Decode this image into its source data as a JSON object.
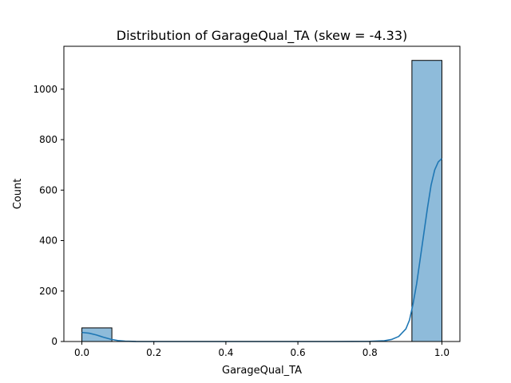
{
  "chart_data": {
    "type": "bar",
    "title": "Distribution of GarageQual_TA (skew = -4.33)",
    "xlabel": "GarageQual_TA",
    "ylabel": "Count",
    "xlim": [
      -0.05,
      1.05
    ],
    "ylim": [
      0,
      1170
    ],
    "x_ticks": [
      0.0,
      0.2,
      0.4,
      0.6,
      0.8,
      1.0
    ],
    "x_tick_labels": [
      "0.0",
      "0.2",
      "0.4",
      "0.6",
      "0.8",
      "1.0"
    ],
    "y_ticks": [
      0,
      200,
      400,
      600,
      800,
      1000
    ],
    "y_tick_labels": [
      "0",
      "200",
      "400",
      "600",
      "800",
      "1000"
    ],
    "bins": [
      {
        "x0": 0.0,
        "x1": 0.0833,
        "count": 54
      },
      {
        "x0": 0.9167,
        "x1": 1.0,
        "count": 1114
      }
    ],
    "kde": {
      "x": [
        0.0,
        0.02,
        0.04,
        0.06,
        0.08,
        0.1,
        0.12,
        0.15,
        0.2,
        0.3,
        0.4,
        0.5,
        0.6,
        0.7,
        0.8,
        0.84,
        0.86,
        0.88,
        0.9,
        0.91,
        0.92,
        0.93,
        0.94,
        0.95,
        0.96,
        0.97,
        0.98,
        0.99,
        1.0
      ],
      "y": [
        36,
        33,
        26,
        17,
        9,
        4,
        1.5,
        0.3,
        0,
        0,
        0,
        0,
        0,
        0,
        0.5,
        3,
        8,
        20,
        50,
        85,
        150,
        230,
        330,
        430,
        530,
        620,
        680,
        712,
        725
      ]
    },
    "bar_color": "#8ebbda",
    "bar_edge_color": "#000000",
    "kde_color": "#1f77b4",
    "grid": false,
    "legend": false
  }
}
